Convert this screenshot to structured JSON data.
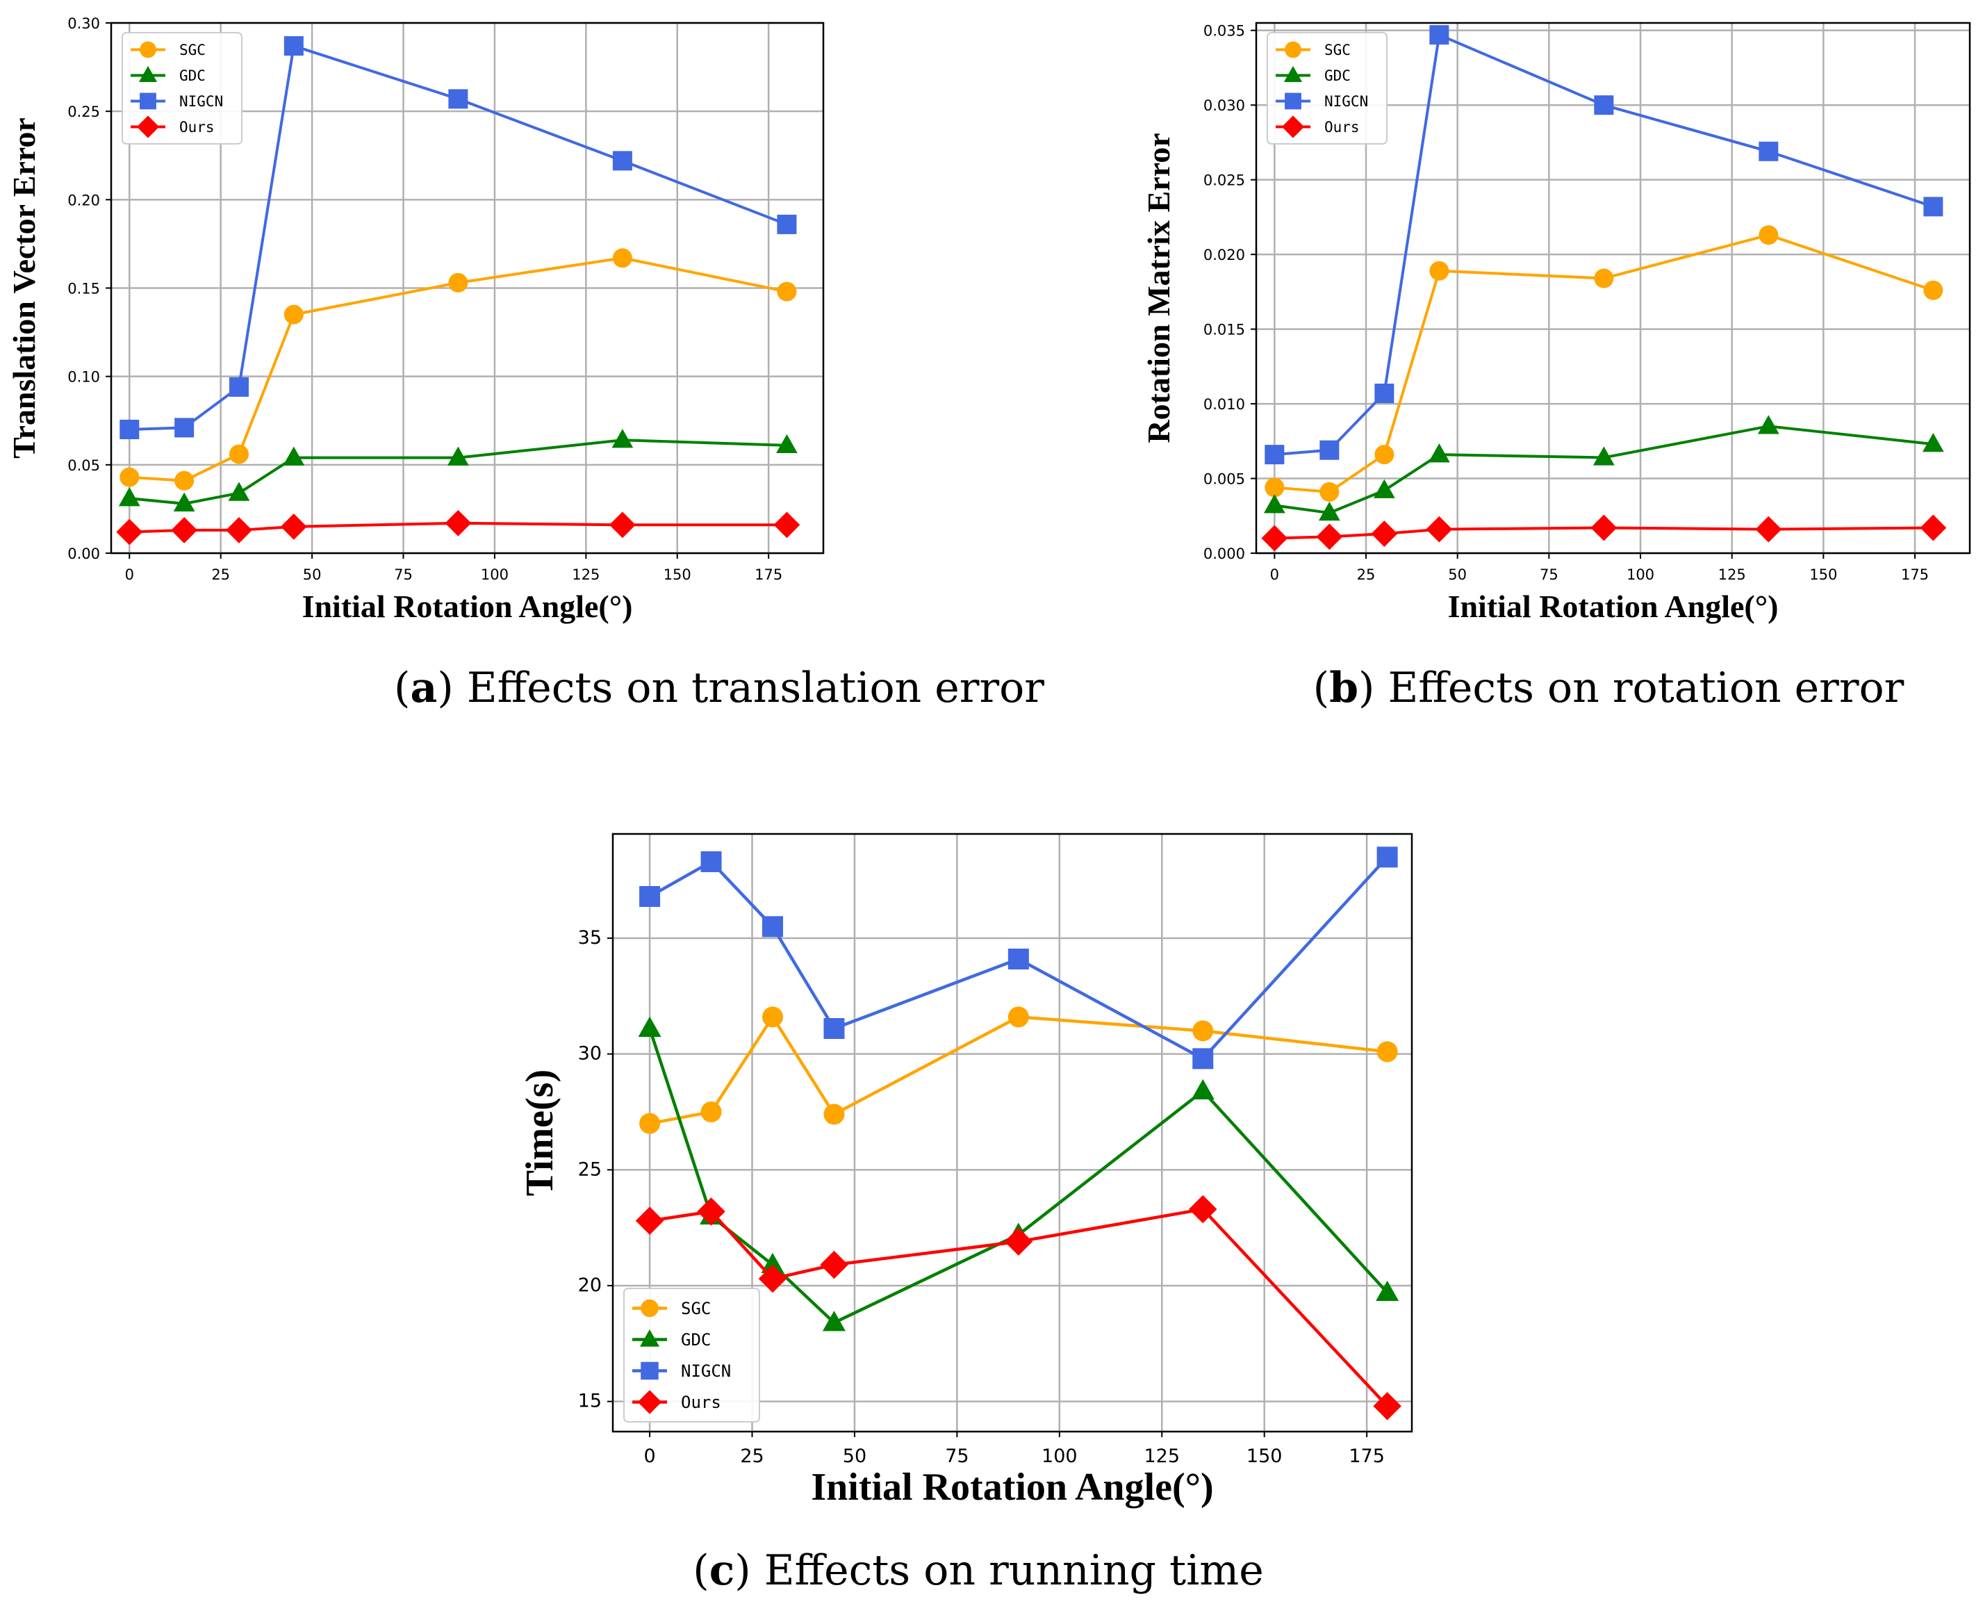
{
  "colors": {
    "SGC": "#FFA500",
    "GDC": "#008000",
    "NIGCN": "#4169E1",
    "Ours": "#FF0000"
  },
  "captions": [
    {
      "label": "a",
      "text": "Effects on translation error"
    },
    {
      "label": "b",
      "text": "Effects on rotation error"
    },
    {
      "label": "c",
      "text": "Effects on running time"
    }
  ],
  "chart_data": [
    {
      "type": "line",
      "title": "",
      "xlabel": "Initial Rotation Angle(°)",
      "ylabel": "Translation Vector Error",
      "x": [
        0,
        15,
        30,
        45,
        90,
        135,
        180
      ],
      "xlim": [
        -5,
        190
      ],
      "ylim": [
        0,
        0.3
      ],
      "xticks": [
        "0",
        "25",
        "50",
        "75",
        "100",
        "125",
        "150",
        "175"
      ],
      "yticks": [
        "0.00",
        "0.05",
        "0.10",
        "0.15",
        "0.20",
        "0.25",
        "0.30"
      ],
      "grid": true,
      "legend_position": "upper-left",
      "series": [
        {
          "name": "SGC",
          "marker": "circle",
          "values": [
            0.043,
            0.041,
            0.056,
            0.135,
            0.153,
            0.167,
            0.148
          ]
        },
        {
          "name": "GDC",
          "marker": "triangle",
          "values": [
            0.031,
            0.028,
            0.034,
            0.054,
            0.054,
            0.064,
            0.061
          ]
        },
        {
          "name": "NIGCN",
          "marker": "square",
          "values": [
            0.07,
            0.071,
            0.094,
            0.287,
            0.257,
            0.222,
            0.186
          ]
        },
        {
          "name": "Ours",
          "marker": "diamond",
          "values": [
            0.012,
            0.013,
            0.013,
            0.015,
            0.017,
            0.016,
            0.016
          ]
        }
      ]
    },
    {
      "type": "line",
      "title": "",
      "xlabel": "Initial Rotation Angle(°)",
      "ylabel": "Rotation Matrix Error",
      "x": [
        0,
        15,
        30,
        45,
        90,
        135,
        180
      ],
      "xlim": [
        -5,
        190
      ],
      "ylim": [
        0,
        0.0355
      ],
      "xticks": [
        "0",
        "25",
        "50",
        "75",
        "100",
        "125",
        "150",
        "175"
      ],
      "yticks": [
        "0.000",
        "0.005",
        "0.010",
        "0.015",
        "0.020",
        "0.025",
        "0.030",
        "0.035"
      ],
      "grid": true,
      "legend_position": "upper-left",
      "series": [
        {
          "name": "SGC",
          "marker": "circle",
          "values": [
            0.0044,
            0.0041,
            0.0066,
            0.0189,
            0.0184,
            0.0213,
            0.0176
          ]
        },
        {
          "name": "GDC",
          "marker": "triangle",
          "values": [
            0.0032,
            0.0027,
            0.0042,
            0.0066,
            0.0064,
            0.0085,
            0.0073
          ]
        },
        {
          "name": "NIGCN",
          "marker": "square",
          "values": [
            0.0066,
            0.0069,
            0.0107,
            0.0347,
            0.03,
            0.0269,
            0.0232
          ]
        },
        {
          "name": "Ours",
          "marker": "diamond",
          "values": [
            0.001,
            0.0011,
            0.0013,
            0.0016,
            0.0017,
            0.0016,
            0.0017
          ]
        }
      ]
    },
    {
      "type": "line",
      "title": "",
      "xlabel": "Initial Rotation Angle(°)",
      "ylabel": "Time(s)",
      "x": [
        0,
        15,
        30,
        45,
        90,
        135,
        180
      ],
      "xlim": [
        -9,
        186
      ],
      "ylim": [
        13.7,
        39.5
      ],
      "xticks": [
        "0",
        "25",
        "50",
        "75",
        "100",
        "125",
        "150",
        "175"
      ],
      "yticks": [
        "15",
        "20",
        "25",
        "30",
        "35"
      ],
      "grid": true,
      "legend_position": "lower-left",
      "series": [
        {
          "name": "SGC",
          "marker": "circle",
          "values": [
            27.0,
            27.5,
            31.6,
            27.4,
            31.6,
            31.0,
            30.1
          ]
        },
        {
          "name": "GDC",
          "marker": "triangle",
          "values": [
            31.1,
            23.0,
            20.9,
            18.4,
            22.2,
            28.4,
            19.7
          ]
        },
        {
          "name": "NIGCN",
          "marker": "square",
          "values": [
            36.8,
            38.3,
            35.5,
            31.1,
            34.1,
            29.8,
            38.5
          ]
        },
        {
          "name": "Ours",
          "marker": "diamond",
          "values": [
            22.8,
            23.2,
            20.3,
            20.9,
            21.9,
            23.3,
            14.8
          ]
        }
      ]
    }
  ]
}
